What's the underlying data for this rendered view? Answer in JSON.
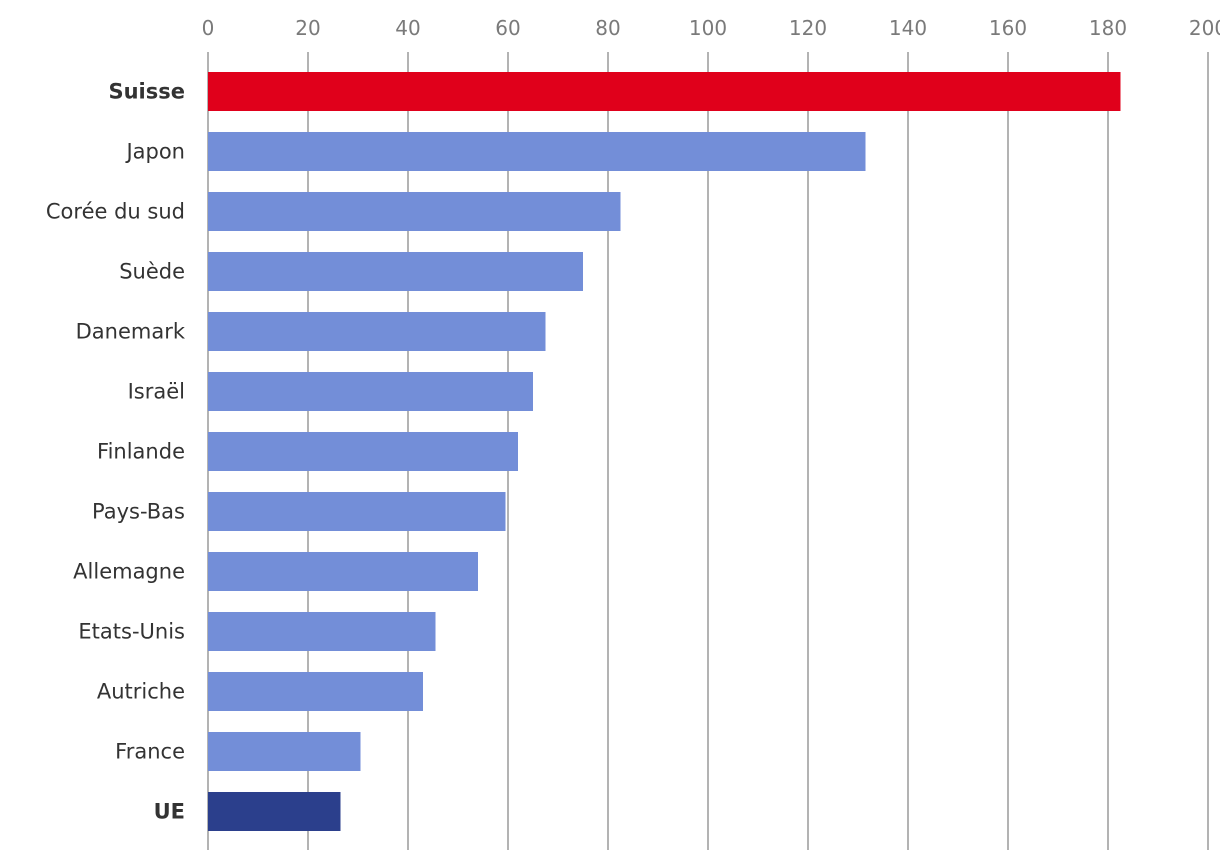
{
  "chart_data": {
    "type": "bar",
    "orientation": "horizontal",
    "categories": [
      "Suisse",
      "Japon",
      "Corée du sud",
      "Suède",
      "Danemark",
      "Israël",
      "Finlande",
      "Pays-Bas",
      "Allemagne",
      "Etats-Unis",
      "Autriche",
      "France",
      "UE"
    ],
    "values": [
      182.5,
      131.5,
      82.5,
      75,
      67.5,
      65,
      62,
      59.5,
      54,
      45.5,
      43,
      30.5,
      26.5
    ],
    "bar_colors": [
      "#e0001b",
      "#738ed8",
      "#738ed8",
      "#738ed8",
      "#738ed8",
      "#738ed8",
      "#738ed8",
      "#738ed8",
      "#738ed8",
      "#738ed8",
      "#738ed8",
      "#738ed8",
      "#2b3f8c"
    ],
    "bold_categories": [
      "Suisse",
      "UE"
    ],
    "x_ticks": [
      0,
      20,
      40,
      60,
      80,
      100,
      120,
      140,
      160,
      180,
      200
    ],
    "xlim": [
      0,
      200
    ],
    "axis_position": "top",
    "grid": true,
    "title": "",
    "xlabel": "",
    "ylabel": ""
  }
}
